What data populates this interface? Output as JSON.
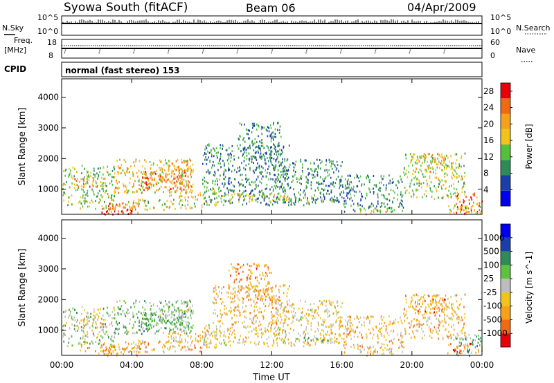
{
  "header": {
    "station": "Syowa South (fitACF)",
    "beam": "Beam 06",
    "date": "04/Apr/2009"
  },
  "status_panels": {
    "nsky_label": "N.Sky",
    "nsearch_label": "N.Search",
    "freq_label_1": "Freq.",
    "freq_label_2": "[MHz]",
    "nave_label": "Nave",
    "cpid_label": "CPID",
    "cpid_text": "normal (fast stereo) 153",
    "noise_ticks_left": [
      "10^5",
      "10^0"
    ],
    "noise_ticks_right": [
      "10^5",
      "10^0"
    ],
    "freq_ticks": [
      "18",
      "8"
    ],
    "nave_ticks": [
      "60",
      "0"
    ]
  },
  "colors": {
    "power_scale": [
      "#0000ee",
      "#1b3fa8",
      "#2e8b57",
      "#52c23c",
      "#f0c419",
      "#f5a11a",
      "#f06a14",
      "#e8000b"
    ],
    "velocity_scale": [
      "#e8000b",
      "#f06a14",
      "#f5a11a",
      "#f0c419",
      "#bdbdbd",
      "#5fc23c",
      "#2e8b57",
      "#1b3fa8",
      "#0000ee"
    ]
  },
  "chart_data": [
    {
      "type": "heatmap",
      "panel": "power",
      "xlabel": "Time UT",
      "ylabel": "Slant Range [km]",
      "x_ticks": [
        "00:00",
        "04:00",
        "08:00",
        "12:00",
        "16:00",
        "20:00",
        "00:00"
      ],
      "y_ticks": [
        1000,
        2000,
        3000,
        4000
      ],
      "xlim": [
        0,
        24
      ],
      "ylim": [
        180,
        4600
      ],
      "colorbar": {
        "label": "Power [dB]",
        "ticks": [
          4,
          8,
          12,
          16,
          20,
          24,
          28
        ],
        "range": [
          0,
          30
        ]
      },
      "echo_regions": [
        {
          "t": [
            0.0,
            3.0
          ],
          "r": [
            500,
            1800
          ],
          "level": 0.45
        },
        {
          "t": [
            0.5,
            2.5
          ],
          "r": [
            1100,
            1400
          ],
          "level": 0.75
        },
        {
          "t": [
            3.0,
            7.5
          ],
          "r": [
            900,
            2000
          ],
          "level": 0.6
        },
        {
          "t": [
            5.5,
            7.5
          ],
          "r": [
            1600,
            2000
          ],
          "level": 0.7
        },
        {
          "t": [
            4.5,
            7.5
          ],
          "r": [
            1000,
            1700
          ],
          "level": 0.8
        },
        {
          "t": [
            2.0,
            4.0
          ],
          "r": [
            200,
            400
          ],
          "level": 0.92
        },
        {
          "t": [
            2.5,
            4.5
          ],
          "r": [
            250,
            600
          ],
          "level": 0.85
        },
        {
          "t": [
            3.5,
            9.0
          ],
          "r": [
            500,
            700
          ],
          "level": 0.5
        },
        {
          "t": [
            1.0,
            8.0
          ],
          "r": [
            350,
            500
          ],
          "level": 0.55
        },
        {
          "t": [
            6.0,
            9.0
          ],
          "r": [
            750,
            1000
          ],
          "level": 0.6
        },
        {
          "t": [
            8.0,
            13.0
          ],
          "r": [
            500,
            2500
          ],
          "level": 0.3
        },
        {
          "t": [
            10.0,
            12.5
          ],
          "r": [
            2000,
            3200
          ],
          "level": 0.3
        },
        {
          "t": [
            9.0,
            13.0
          ],
          "r": [
            600,
            900
          ],
          "level": 0.55
        },
        {
          "t": [
            12.0,
            16.0
          ],
          "r": [
            500,
            2000
          ],
          "level": 0.3
        },
        {
          "t": [
            13.0,
            15.5
          ],
          "r": [
            600,
            800
          ],
          "level": 0.45
        },
        {
          "t": [
            16.0,
            19.5
          ],
          "r": [
            300,
            1500
          ],
          "level": 0.3
        },
        {
          "t": [
            17.0,
            19.0
          ],
          "r": [
            200,
            400
          ],
          "level": 0.55
        },
        {
          "t": [
            19.5,
            23.0
          ],
          "r": [
            700,
            2200
          ],
          "level": 0.5
        },
        {
          "t": [
            20.0,
            22.0
          ],
          "r": [
            1600,
            2200
          ],
          "level": 0.6
        },
        {
          "t": [
            22.5,
            24.0
          ],
          "r": [
            200,
            900
          ],
          "level": 0.85
        },
        {
          "t": [
            22.0,
            24.0
          ],
          "r": [
            250,
            600
          ],
          "level": 0.6
        }
      ]
    },
    {
      "type": "heatmap",
      "panel": "velocity",
      "xlabel": "Time UT",
      "ylabel": "Slant Range [km]",
      "x_ticks": [
        "00:00",
        "04:00",
        "08:00",
        "12:00",
        "16:00",
        "20:00",
        "00:00"
      ],
      "y_ticks": [
        1000,
        2000,
        3000,
        4000
      ],
      "xlim": [
        0,
        24
      ],
      "ylim": [
        180,
        4600
      ],
      "colorbar": {
        "label": "Velocity [m s^-1]",
        "ticks": [
          1000,
          500,
          100,
          25,
          -25,
          -100,
          -500,
          -1000
        ],
        "range": [
          -1200,
          1200
        ]
      },
      "echo_regions": [
        {
          "t": [
            0.0,
            3.0
          ],
          "r": [
            500,
            1800
          ],
          "level": 0.55
        },
        {
          "t": [
            0.5,
            2.5
          ],
          "r": [
            1100,
            1400
          ],
          "level": 0.35
        },
        {
          "t": [
            3.0,
            7.5
          ],
          "r": [
            900,
            2000
          ],
          "level": 0.6
        },
        {
          "t": [
            5.5,
            7.5
          ],
          "r": [
            1600,
            2000
          ],
          "level": 0.55
        },
        {
          "t": [
            4.5,
            7.5
          ],
          "r": [
            1000,
            1700
          ],
          "level": 0.62
        },
        {
          "t": [
            2.0,
            4.5
          ],
          "r": [
            200,
            600
          ],
          "level": 0.3
        },
        {
          "t": [
            3.5,
            9.0
          ],
          "r": [
            450,
            700
          ],
          "level": 0.35
        },
        {
          "t": [
            1.0,
            8.0
          ],
          "r": [
            300,
            500
          ],
          "level": 0.3
        },
        {
          "t": [
            6.0,
            9.0
          ],
          "r": [
            650,
            1000
          ],
          "level": 0.38
        },
        {
          "t": [
            8.0,
            13.0
          ],
          "r": [
            500,
            1200
          ],
          "level": 0.42
        },
        {
          "t": [
            9.5,
            12.0
          ],
          "r": [
            2000,
            3200
          ],
          "level": 0.25
        },
        {
          "t": [
            8.5,
            13.0
          ],
          "r": [
            1200,
            2500
          ],
          "level": 0.35
        },
        {
          "t": [
            12.0,
            16.0
          ],
          "r": [
            500,
            2000
          ],
          "level": 0.4
        },
        {
          "t": [
            13.0,
            15.5
          ],
          "r": [
            600,
            800
          ],
          "level": 0.6
        },
        {
          "t": [
            16.0,
            19.5
          ],
          "r": [
            300,
            1500
          ],
          "level": 0.35
        },
        {
          "t": [
            17.0,
            19.0
          ],
          "r": [
            200,
            400
          ],
          "level": 0.3
        },
        {
          "t": [
            19.5,
            23.0
          ],
          "r": [
            700,
            2200
          ],
          "level": 0.35
        },
        {
          "t": [
            20.0,
            22.0
          ],
          "r": [
            1600,
            2200
          ],
          "level": 0.25
        },
        {
          "t": [
            22.5,
            24.0
          ],
          "r": [
            200,
            900
          ],
          "level": 0.62
        },
        {
          "t": [
            22.0,
            24.0
          ],
          "r": [
            250,
            600
          ],
          "level": 0.2
        }
      ]
    }
  ]
}
